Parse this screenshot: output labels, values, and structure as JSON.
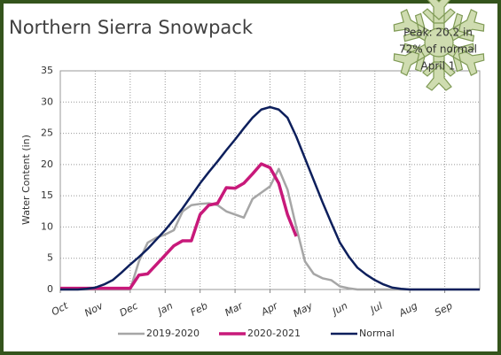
{
  "chart_data": {
    "type": "line",
    "title": "Northern Sierra Snowpack",
    "ylabel": "Water Content (in)",
    "annotations": [
      "Peak: 20.2 in",
      "72% of normal",
      "April 1"
    ],
    "xlim": [
      0,
      12
    ],
    "xticks": [
      {
        "value": 0,
        "label": "Oct"
      },
      {
        "value": 1,
        "label": "Nov"
      },
      {
        "value": 2,
        "label": "Dec"
      },
      {
        "value": 3,
        "label": "Jan"
      },
      {
        "value": 4,
        "label": "Feb"
      },
      {
        "value": 5,
        "label": "Mar"
      },
      {
        "value": 6,
        "label": "Apr"
      },
      {
        "value": 7,
        "label": "May"
      },
      {
        "value": 8,
        "label": "Jun"
      },
      {
        "value": 9,
        "label": "Jul"
      },
      {
        "value": 10,
        "label": "Aug"
      },
      {
        "value": 11,
        "label": "Sep"
      }
    ],
    "ylim": [
      0,
      35
    ],
    "yticks": [
      0,
      5,
      10,
      15,
      20,
      25,
      30,
      35
    ],
    "grid": true,
    "legend": "bottom",
    "x": [
      0,
      0.25,
      0.5,
      0.75,
      1,
      1.25,
      1.5,
      1.75,
      2,
      2.25,
      2.5,
      2.75,
      3,
      3.25,
      3.5,
      3.75,
      4,
      4.25,
      4.5,
      4.75,
      5,
      5.25,
      5.5,
      5.75,
      6,
      6.25,
      6.5,
      6.75,
      7,
      7.25,
      7.5,
      7.75,
      8,
      8.25,
      8.5,
      8.75,
      9,
      9.25,
      9.5,
      9.75,
      10,
      10.25,
      10.5,
      10.75,
      11,
      11.25,
      11.5,
      11.75,
      12
    ],
    "series": [
      {
        "name": "2019-2020",
        "color": "#a6a6a6",
        "values": [
          0,
          0,
          0,
          0,
          0,
          0,
          0,
          0,
          0,
          4.5,
          7.5,
          8.3,
          8.8,
          9.5,
          12.5,
          13.5,
          13.7,
          13.8,
          13.5,
          12.5,
          12,
          11.5,
          14.5,
          15.5,
          16.5,
          19.3,
          16,
          10,
          4.5,
          2.5,
          1.8,
          1.5,
          0.5,
          0.2,
          0,
          0,
          0,
          0,
          0,
          0,
          0,
          0,
          0,
          0,
          0,
          0,
          0,
          0,
          0
        ]
      },
      {
        "name": "2020-2021",
        "color": "#c8197a",
        "values": [
          0.2,
          0.2,
          0.2,
          0.2,
          0.2,
          0.2,
          0.2,
          0.2,
          0.2,
          2.3,
          2.5,
          4,
          5.5,
          7,
          7.8,
          7.8,
          12,
          13.5,
          13.8,
          16.3,
          16.2,
          17,
          18.5,
          20.1,
          19.5,
          17,
          12,
          8.5,
          null,
          null,
          null,
          null,
          null,
          null,
          null,
          null,
          null,
          null,
          null,
          null,
          null,
          null,
          null,
          null,
          null,
          null,
          null,
          null,
          null
        ]
      },
      {
        "name": "Normal",
        "color": "#0d1f5c",
        "values": [
          0,
          0,
          0,
          0.1,
          0.3,
          0.8,
          1.5,
          2.7,
          4,
          5.2,
          6.5,
          8,
          9.5,
          11.2,
          13,
          15,
          17,
          18.8,
          20.5,
          22.3,
          24,
          25.8,
          27.5,
          28.8,
          29.2,
          28.8,
          27.5,
          24.5,
          21,
          17.5,
          14,
          10.7,
          7.5,
          5.3,
          3.5,
          2.4,
          1.5,
          0.8,
          0.3,
          0.1,
          0,
          0,
          0,
          0,
          0,
          0,
          0,
          0,
          0
        ]
      }
    ]
  }
}
